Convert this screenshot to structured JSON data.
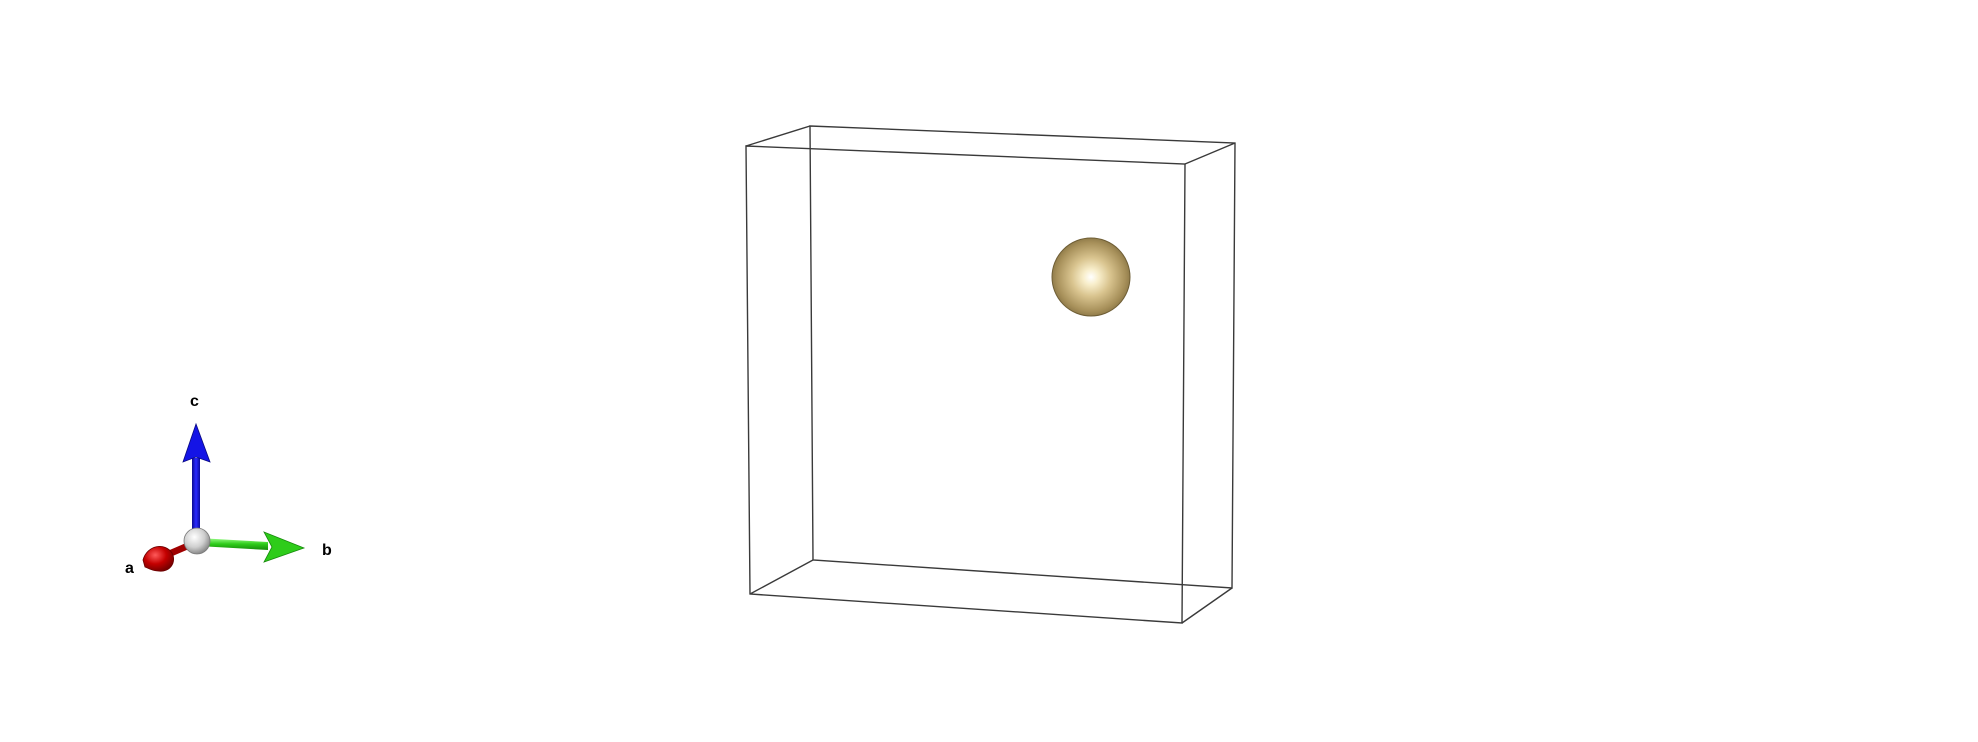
{
  "colors": {
    "background": "#ffffff",
    "cell_edge": "#3a3a3a",
    "axis_a": "#cc0000",
    "axis_b": "#2ecc1a",
    "axis_c": "#1010e0",
    "axis_origin": "#d8d8d8",
    "atom": "#c9b27a"
  },
  "axes": {
    "a_label": "a",
    "b_label": "b",
    "c_label": "c"
  },
  "unit_cell": {
    "atom_count": 1
  }
}
